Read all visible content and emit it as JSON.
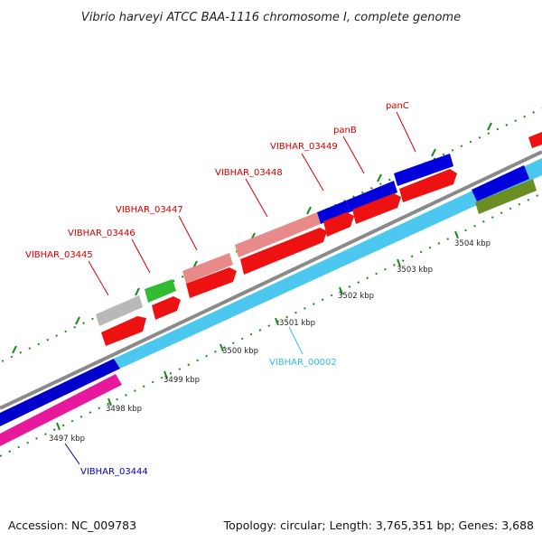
{
  "title": "Vibrio harveyi ATCC BAA-1116 chromosome I, complete genome",
  "footer": {
    "accession": "Accession: NC_009783",
    "summary": "Topology: circular; Length: 3,765,351 bp; Genes: 3,688"
  },
  "colors": {
    "label_red": "#cc0000",
    "label_blue": "#0000aa",
    "label_cyan": "#33bbe8",
    "tick_green": "#1a8a1a",
    "backbone_gray": "#808080"
  },
  "gene_labels": [
    {
      "name": "VIBHAR_03445",
      "color": "#cc0000"
    },
    {
      "name": "VIBHAR_03446",
      "color": "#cc0000"
    },
    {
      "name": "VIBHAR_03447",
      "color": "#cc0000"
    },
    {
      "name": "VIBHAR_03448",
      "color": "#cc0000"
    },
    {
      "name": "VIBHAR_03449",
      "color": "#cc0000"
    },
    {
      "name": "panB",
      "color": "#cc0000"
    },
    {
      "name": "panC",
      "color": "#cc0000"
    },
    {
      "name": "VIBHAR_00002",
      "color": "#33bbe8"
    },
    {
      "name": "VIBHAR_03444",
      "color": "#0000aa"
    }
  ],
  "tick_labels": [
    "3497 kbp",
    "3498 kbp",
    "3499 kbp",
    "3500 kbp",
    "3501 kbp",
    "3502 kbp",
    "3503 kbp",
    "3504 kbp"
  ]
}
